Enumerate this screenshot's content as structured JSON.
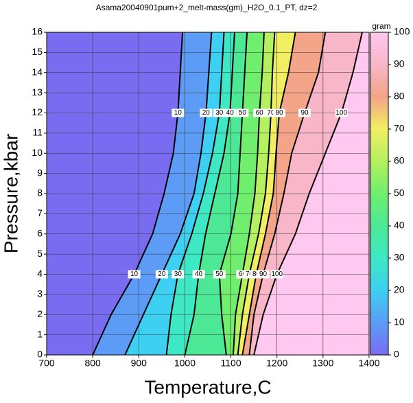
{
  "chart_data": {
    "type": "contour",
    "title": "Asama20040901pum+2_melt-mass(gm)_H2O_0.1_PT, dz=2",
    "x_label": "Temperature,C",
    "y_label": "Pressure,kbar",
    "xlim": [
      700,
      1400
    ],
    "ylim": [
      0,
      16
    ],
    "xticks": [
      700,
      800,
      900,
      1000,
      1100,
      1200,
      1300,
      1400
    ],
    "yticks": [
      0,
      1,
      2,
      3,
      4,
      5,
      6,
      7,
      8,
      9,
      10,
      11,
      12,
      13,
      14,
      15,
      16
    ],
    "grid": true,
    "base_color": "#7a6cf0",
    "series": [
      {
        "level": 10,
        "color": "#5c9cf6",
        "x": [
          800,
          840,
          890,
          930,
          955,
          975,
          985,
          990,
          995
        ],
        "y": [
          0,
          2,
          4,
          6,
          8,
          10,
          12,
          14,
          16
        ]
      },
      {
        "level": 20,
        "color": "#3ed0f2",
        "x": [
          870,
          910,
          950,
          990,
          1020,
          1035,
          1046,
          1052,
          1058
        ],
        "y": [
          0,
          2,
          4,
          6,
          8,
          10,
          12,
          14,
          16
        ]
      },
      {
        "level": 30,
        "color": "#3ee8c4",
        "x": [
          960,
          970,
          985,
          1015,
          1040,
          1060,
          1075,
          1080,
          1085
        ],
        "y": [
          0,
          2,
          4,
          6,
          8,
          10,
          12,
          14,
          16
        ]
      },
      {
        "level": 40,
        "color": "#4ce896",
        "x": [
          1000,
          1020,
          1030,
          1045,
          1065,
          1085,
          1098,
          1103,
          1108
        ],
        "y": [
          0,
          2,
          4,
          6,
          8,
          10,
          12,
          14,
          16
        ]
      },
      {
        "level": 50,
        "color": "#70ee6e",
        "x": [
          1090,
          1080,
          1075,
          1100,
          1115,
          1120,
          1125,
          1130,
          1135
        ],
        "y": [
          0,
          2,
          4,
          6,
          8,
          10,
          12,
          14,
          16
        ]
      },
      {
        "level": 60,
        "color": "#b4f060",
        "x": [
          1105,
          1110,
          1125,
          1140,
          1152,
          1158,
          1162,
          1168,
          1172
        ],
        "y": [
          0,
          2,
          4,
          6,
          8,
          10,
          12,
          14,
          16
        ]
      },
      {
        "level": 70,
        "color": "#f2ee62",
        "x": [
          1115,
          1125,
          1140,
          1160,
          1175,
          1182,
          1187,
          1190,
          1195
        ],
        "y": [
          0,
          2,
          4,
          6,
          8,
          10,
          12,
          14,
          16
        ]
      },
      {
        "level": 80,
        "color": "#f4a488",
        "x": [
          1125,
          1140,
          1155,
          1175,
          1192,
          1198,
          1205,
          1225,
          1240
        ],
        "y": [
          0,
          2,
          4,
          6,
          8,
          10,
          12,
          14,
          16
        ]
      },
      {
        "level": 90,
        "color": "#f8b6c8",
        "x": [
          1140,
          1150,
          1170,
          1195,
          1215,
          1232,
          1260,
          1290,
          1305
        ],
        "y": [
          0,
          2,
          4,
          6,
          8,
          10,
          12,
          14,
          16
        ]
      },
      {
        "level": 100,
        "color": "#ffc8f0",
        "x": [
          1150,
          1170,
          1200,
          1240,
          1270,
          1305,
          1340,
          1365,
          1385
        ],
        "y": [
          0,
          2,
          4,
          6,
          8,
          10,
          12,
          14,
          16
        ]
      }
    ],
    "colorbar": {
      "label": "gram",
      "lim": [
        0,
        100
      ],
      "ticks": [
        0,
        10,
        20,
        30,
        40,
        50,
        60,
        70,
        80,
        90,
        100
      ]
    }
  }
}
